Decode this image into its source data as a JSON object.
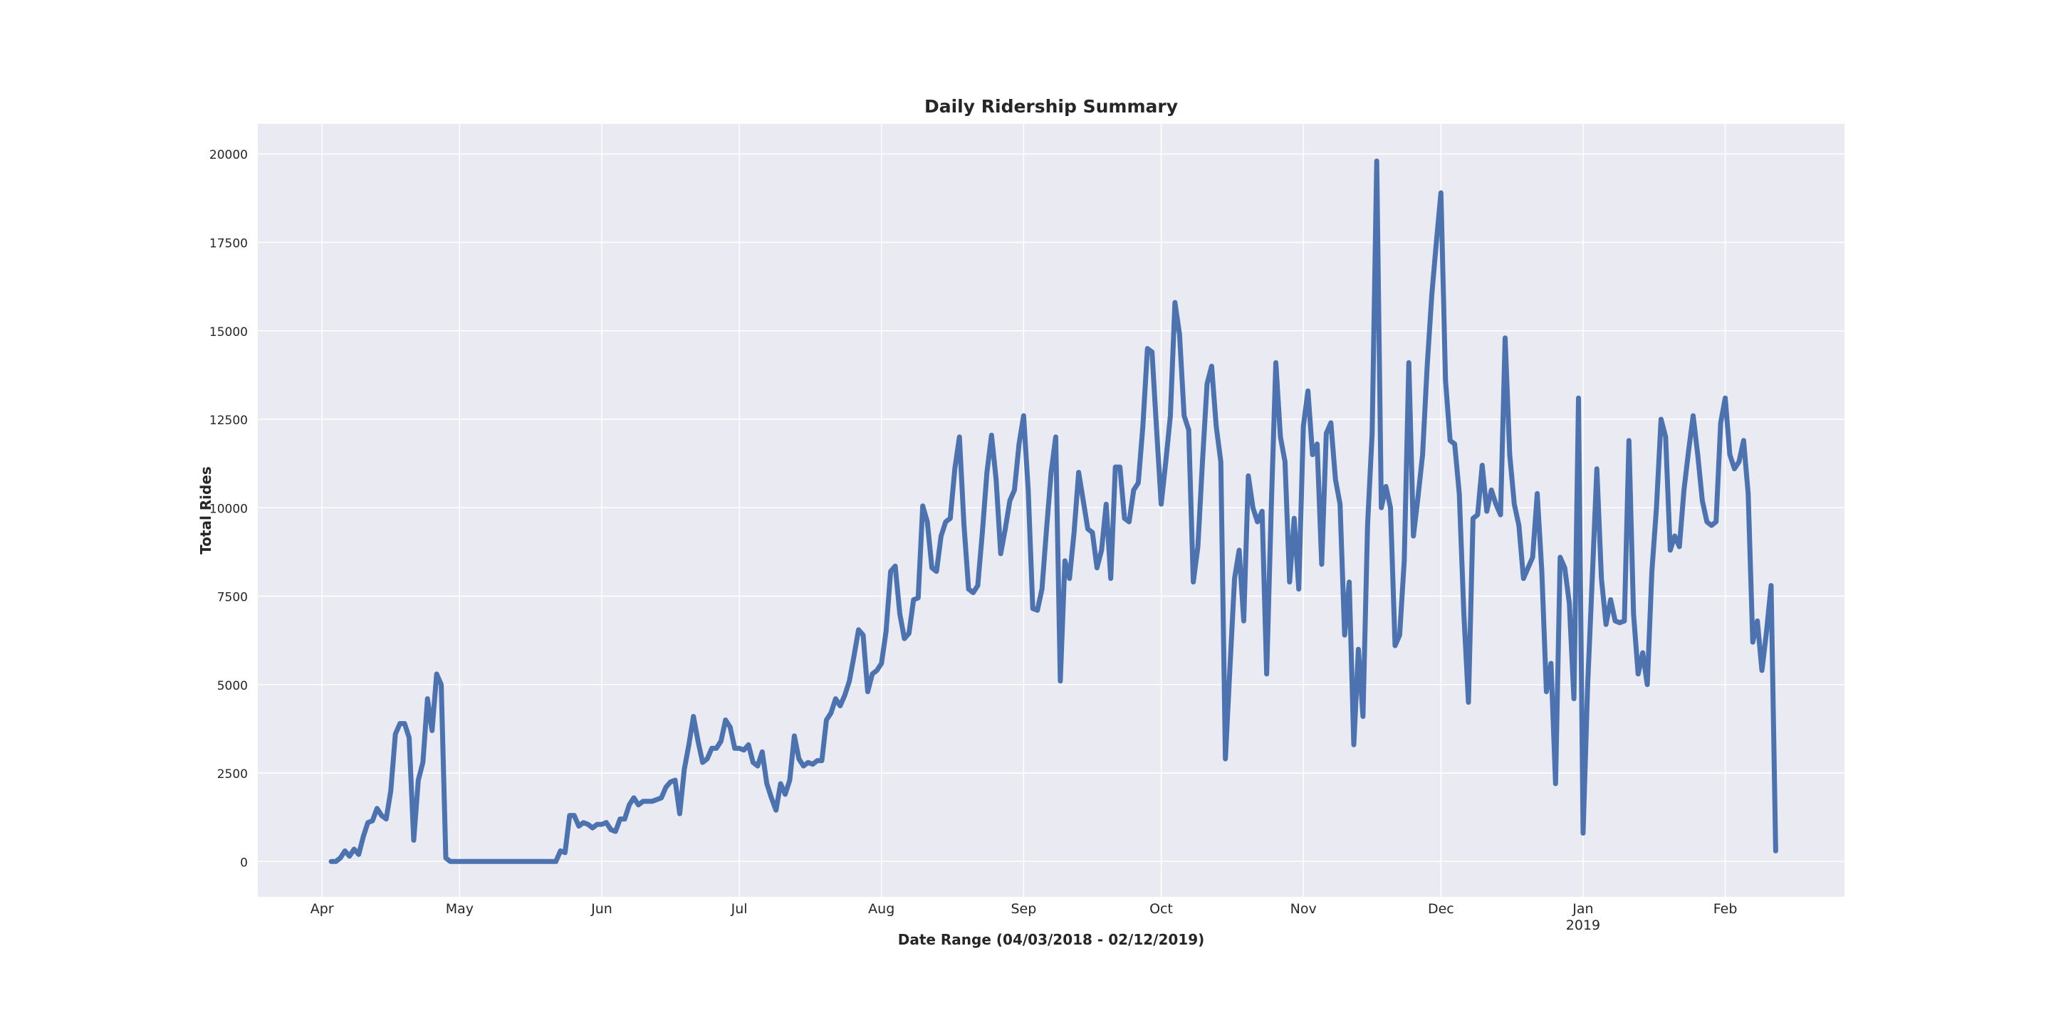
{
  "chart_data": {
    "type": "line",
    "title": "Daily Ridership Summary",
    "x_label": "Date Range (04/03/2018 - 02/12/2019)",
    "y_label": "Total Rides",
    "color": "#4c72b0",
    "grid": true,
    "xlim": [
      "2018-03-18",
      "2019-02-27"
    ],
    "ylim": [
      -1000,
      20850
    ],
    "yticks": [
      0,
      2500,
      5000,
      7500,
      10000,
      12500,
      15000,
      17500,
      20000
    ],
    "xticks": [
      {
        "value": "2018-04-01",
        "label": "Apr"
      },
      {
        "value": "2018-05-01",
        "label": "May"
      },
      {
        "value": "2018-06-01",
        "label": "Jun"
      },
      {
        "value": "2018-07-01",
        "label": "Jul"
      },
      {
        "value": "2018-08-01",
        "label": "Aug"
      },
      {
        "value": "2018-09-01",
        "label": "Sep"
      },
      {
        "value": "2018-10-01",
        "label": "Oct"
      },
      {
        "value": "2018-11-01",
        "label": "Nov"
      },
      {
        "value": "2018-12-01",
        "label": "Dec"
      },
      {
        "value": "2019-01-01",
        "label": "Jan\n2019"
      },
      {
        "value": "2019-02-01",
        "label": "Feb"
      }
    ],
    "x": [
      "2018-04-03",
      "2018-04-04",
      "2018-04-05",
      "2018-04-06",
      "2018-04-07",
      "2018-04-08",
      "2018-04-09",
      "2018-04-10",
      "2018-04-11",
      "2018-04-12",
      "2018-04-13",
      "2018-04-14",
      "2018-04-15",
      "2018-04-16",
      "2018-04-17",
      "2018-04-18",
      "2018-04-19",
      "2018-04-20",
      "2018-04-21",
      "2018-04-22",
      "2018-04-23",
      "2018-04-24",
      "2018-04-25",
      "2018-04-26",
      "2018-04-27",
      "2018-04-28",
      "2018-04-29",
      "2018-04-30",
      "2018-05-01",
      "2018-05-02",
      "2018-05-03",
      "2018-05-04",
      "2018-05-05",
      "2018-05-06",
      "2018-05-07",
      "2018-05-08",
      "2018-05-09",
      "2018-05-10",
      "2018-05-11",
      "2018-05-12",
      "2018-05-13",
      "2018-05-14",
      "2018-05-15",
      "2018-05-16",
      "2018-05-17",
      "2018-05-18",
      "2018-05-19",
      "2018-05-20",
      "2018-05-21",
      "2018-05-22",
      "2018-05-23",
      "2018-05-24",
      "2018-05-25",
      "2018-05-26",
      "2018-05-27",
      "2018-05-28",
      "2018-05-29",
      "2018-05-30",
      "2018-05-31",
      "2018-06-01",
      "2018-06-02",
      "2018-06-03",
      "2018-06-04",
      "2018-06-05",
      "2018-06-06",
      "2018-06-07",
      "2018-06-08",
      "2018-06-09",
      "2018-06-10",
      "2018-06-11",
      "2018-06-12",
      "2018-06-13",
      "2018-06-14",
      "2018-06-15",
      "2018-06-16",
      "2018-06-17",
      "2018-06-18",
      "2018-06-19",
      "2018-06-20",
      "2018-06-21",
      "2018-06-22",
      "2018-06-23",
      "2018-06-24",
      "2018-06-25",
      "2018-06-26",
      "2018-06-27",
      "2018-06-28",
      "2018-06-29",
      "2018-06-30",
      "2018-07-01",
      "2018-07-02",
      "2018-07-03",
      "2018-07-04",
      "2018-07-05",
      "2018-07-06",
      "2018-07-07",
      "2018-07-08",
      "2018-07-09",
      "2018-07-10",
      "2018-07-11",
      "2018-07-12",
      "2018-07-13",
      "2018-07-14",
      "2018-07-15",
      "2018-07-16",
      "2018-07-17",
      "2018-07-18",
      "2018-07-19",
      "2018-07-20",
      "2018-07-21",
      "2018-07-22",
      "2018-07-23",
      "2018-07-24",
      "2018-07-25",
      "2018-07-26",
      "2018-07-27",
      "2018-07-28",
      "2018-07-29",
      "2018-07-30",
      "2018-07-31",
      "2018-08-01",
      "2018-08-02",
      "2018-08-03",
      "2018-08-04",
      "2018-08-05",
      "2018-08-06",
      "2018-08-07",
      "2018-08-08",
      "2018-08-09",
      "2018-08-10",
      "2018-08-11",
      "2018-08-12",
      "2018-08-13",
      "2018-08-14",
      "2018-08-15",
      "2018-08-16",
      "2018-08-17",
      "2018-08-18",
      "2018-08-19",
      "2018-08-20",
      "2018-08-21",
      "2018-08-22",
      "2018-08-23",
      "2018-08-24",
      "2018-08-25",
      "2018-08-26",
      "2018-08-27",
      "2018-08-28",
      "2018-08-29",
      "2018-08-30",
      "2018-08-31",
      "2018-09-01",
      "2018-09-02",
      "2018-09-03",
      "2018-09-04",
      "2018-09-05",
      "2018-09-06",
      "2018-09-07",
      "2018-09-08",
      "2018-09-09",
      "2018-09-10",
      "2018-09-11",
      "2018-09-12",
      "2018-09-13",
      "2018-09-14",
      "2018-09-15",
      "2018-09-16",
      "2018-09-17",
      "2018-09-18",
      "2018-09-19",
      "2018-09-20",
      "2018-09-21",
      "2018-09-22",
      "2018-09-23",
      "2018-09-24",
      "2018-09-25",
      "2018-09-26",
      "2018-09-27",
      "2018-09-28",
      "2018-09-29",
      "2018-09-30",
      "2018-10-01",
      "2018-10-02",
      "2018-10-03",
      "2018-10-04",
      "2018-10-05",
      "2018-10-06",
      "2018-10-07",
      "2018-10-08",
      "2018-10-09",
      "2018-10-10",
      "2018-10-11",
      "2018-10-12",
      "2018-10-13",
      "2018-10-14",
      "2018-10-15",
      "2018-10-16",
      "2018-10-17",
      "2018-10-18",
      "2018-10-19",
      "2018-10-20",
      "2018-10-21",
      "2018-10-22",
      "2018-10-23",
      "2018-10-24",
      "2018-10-25",
      "2018-10-26",
      "2018-10-27",
      "2018-10-28",
      "2018-10-29",
      "2018-10-30",
      "2018-10-31",
      "2018-11-01",
      "2018-11-02",
      "2018-11-03",
      "2018-11-04",
      "2018-11-05",
      "2018-11-06",
      "2018-11-07",
      "2018-11-08",
      "2018-11-09",
      "2018-11-10",
      "2018-11-11",
      "2018-11-12",
      "2018-11-13",
      "2018-11-14",
      "2018-11-15",
      "2018-11-16",
      "2018-11-17",
      "2018-11-18",
      "2018-11-19",
      "2018-11-20",
      "2018-11-21",
      "2018-11-22",
      "2018-11-23",
      "2018-11-24",
      "2018-11-25",
      "2018-11-26",
      "2018-11-27",
      "2018-11-28",
      "2018-11-29",
      "2018-11-30",
      "2018-12-01",
      "2018-12-02",
      "2018-12-03",
      "2018-12-04",
      "2018-12-05",
      "2018-12-06",
      "2018-12-07",
      "2018-12-08",
      "2018-12-09",
      "2018-12-10",
      "2018-12-11",
      "2018-12-12",
      "2018-12-13",
      "2018-12-14",
      "2018-12-15",
      "2018-12-16",
      "2018-12-17",
      "2018-12-18",
      "2018-12-19",
      "2018-12-20",
      "2018-12-21",
      "2018-12-22",
      "2018-12-23",
      "2018-12-24",
      "2018-12-25",
      "2018-12-26",
      "2018-12-27",
      "2018-12-28",
      "2018-12-29",
      "2018-12-30",
      "2018-12-31",
      "2019-01-01",
      "2019-01-02",
      "2019-01-03",
      "2019-01-04",
      "2019-01-05",
      "2019-01-06",
      "2019-01-07",
      "2019-01-08",
      "2019-01-09",
      "2019-01-10",
      "2019-01-11",
      "2019-01-12",
      "2019-01-13",
      "2019-01-14",
      "2019-01-15",
      "2019-01-16",
      "2019-01-17",
      "2019-01-18",
      "2019-01-19",
      "2019-01-20",
      "2019-01-21",
      "2019-01-22",
      "2019-01-23",
      "2019-01-24",
      "2019-01-25",
      "2019-01-26",
      "2019-01-27",
      "2019-01-28",
      "2019-01-29",
      "2019-01-30",
      "2019-01-31",
      "2019-02-01",
      "2019-02-02",
      "2019-02-03",
      "2019-02-04",
      "2019-02-05",
      "2019-02-06",
      "2019-02-07",
      "2019-02-08",
      "2019-02-09",
      "2019-02-10",
      "2019-02-11",
      "2019-02-12"
    ],
    "values": [
      0,
      0,
      100,
      300,
      150,
      350,
      200,
      700,
      1100,
      1150,
      1500,
      1300,
      1200,
      2000,
      3600,
      3900,
      3900,
      3500,
      600,
      2300,
      2800,
      4600,
      3700,
      5300,
      5000,
      100,
      0,
      0,
      0,
      0,
      0,
      0,
      0,
      0,
      0,
      0,
      0,
      0,
      0,
      0,
      0,
      0,
      0,
      0,
      0,
      0,
      0,
      0,
      0,
      0,
      300,
      250,
      1300,
      1300,
      1000,
      1100,
      1050,
      950,
      1050,
      1050,
      1100,
      900,
      850,
      1200,
      1200,
      1600,
      1800,
      1600,
      1700,
      1700,
      1700,
      1750,
      1800,
      2100,
      2250,
      2300,
      1350,
      2600,
      3300,
      4100,
      3400,
      2800,
      2900,
      3200,
      3200,
      3400,
      4000,
      3800,
      3200,
      3200,
      3150,
      3300,
      2800,
      2700,
      3100,
      2200,
      1800,
      1450,
      2200,
      1900,
      2300,
      3550,
      2900,
      2700,
      2800,
      2750,
      2850,
      2850,
      4000,
      4200,
      4600,
      4400,
      4700,
      5100,
      5800,
      6550,
      6400,
      4800,
      5300,
      5400,
      5600,
      6500,
      8200,
      8350,
      7000,
      6300,
      6450,
      7400,
      7450,
      10050,
      9600,
      8300,
      8200,
      9200,
      9600,
      9700,
      11100,
      12000,
      9500,
      7700,
      7600,
      7800,
      9300,
      11000,
      12050,
      10800,
      8700,
      9400,
      10200,
      10500,
      11800,
      12600,
      10500,
      7150,
      7100,
      7700,
      9400,
      11000,
      12000,
      5100,
      8500,
      8000,
      9300,
      11000,
      10200,
      9400,
      9300,
      8300,
      8800,
      10100,
      8000,
      11150,
      11150,
      9700,
      9600,
      10500,
      10700,
      12300,
      14500,
      14400,
      12200,
      10100,
      11300,
      12600,
      15800,
      14900,
      12600,
      12200,
      7900,
      8900,
      11300,
      13500,
      14000,
      12300,
      11300,
      2900,
      5500,
      8000,
      8800,
      6800,
      10900,
      10000,
      9600,
      9900,
      5300,
      10000,
      14100,
      12000,
      11300,
      7900,
      9700,
      7700,
      12300,
      13300,
      11500,
      11800,
      8400,
      12100,
      12400,
      10800,
      10100,
      6400,
      7900,
      3300,
      6000,
      4100,
      9500,
      12100,
      19800,
      10000,
      10600,
      10000,
      6100,
      6400,
      8500,
      14100,
      9200,
      10300,
      11500,
      14000,
      16000,
      17500,
      18900,
      13600,
      11900,
      11800,
      10400,
      7000,
      4500,
      9700,
      9800,
      11200,
      9900,
      10500,
      10100,
      9800,
      14800,
      11500,
      10100,
      9500,
      8000,
      8300,
      8600,
      10400,
      8200,
      4800,
      5600,
      2200,
      8600,
      8300,
      7300,
      4600,
      13100,
      800,
      5000,
      8000,
      11100,
      8000,
      6700,
      7400,
      6800,
      6750,
      6800,
      11900,
      7000,
      5300,
      5900,
      5000,
      8200,
      10000,
      12500,
      12000,
      8800,
      9200,
      8900,
      10500,
      11600,
      12600,
      11500,
      10200,
      9600,
      9500,
      9600,
      12400,
      13100,
      11500,
      11100,
      11300,
      11900,
      10400,
      6200,
      6800,
      5400,
      6500,
      7800,
      300
    ]
  }
}
